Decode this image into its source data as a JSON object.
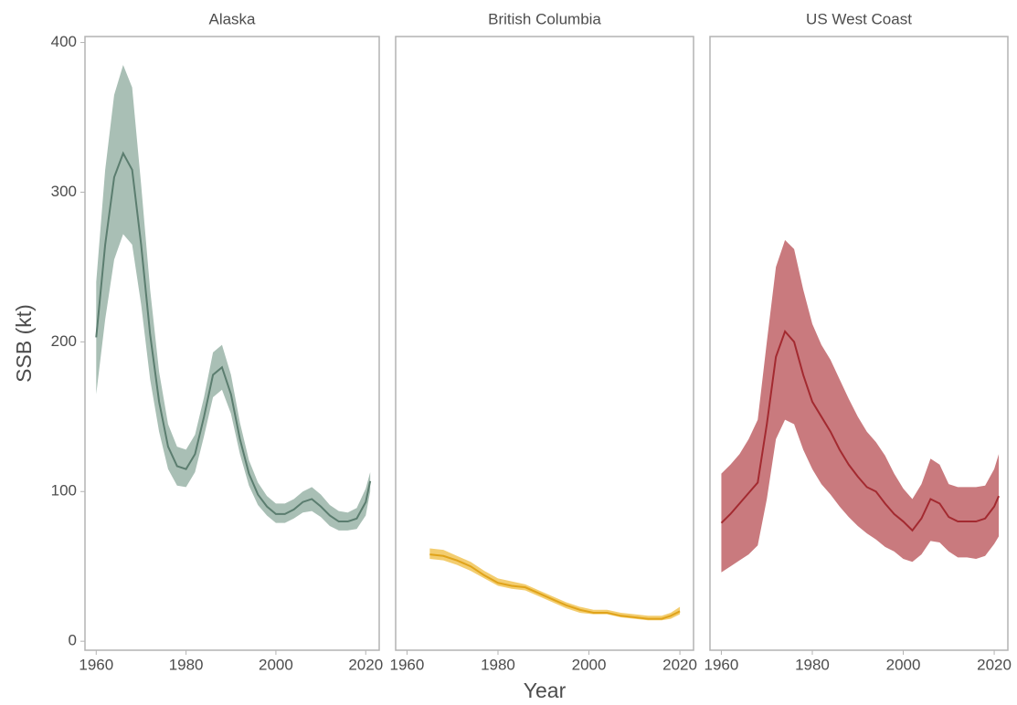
{
  "chart_data": [
    {
      "type": "line",
      "title": "Alaska",
      "ylabel": "SSB (kt)",
      "color": "#5b7d6f",
      "band_color": "#a9bfb5",
      "x": [
        1960,
        1962,
        1964,
        1966,
        1968,
        1970,
        1972,
        1974,
        1976,
        1978,
        1980,
        1982,
        1984,
        1986,
        1988,
        1990,
        1992,
        1994,
        1996,
        1998,
        2000,
        2002,
        2004,
        2006,
        2008,
        2010,
        2012,
        2014,
        2016,
        2018,
        2020,
        2021
      ],
      "values": [
        203,
        265,
        310,
        326,
        315,
        265,
        205,
        160,
        130,
        117,
        115,
        125,
        150,
        178,
        183,
        165,
        135,
        112,
        98,
        90,
        85,
        85,
        88,
        93,
        95,
        90,
        84,
        80,
        80,
        82,
        93,
        107
      ],
      "lower": [
        165,
        215,
        255,
        272,
        265,
        225,
        175,
        140,
        115,
        104,
        103,
        113,
        137,
        163,
        168,
        152,
        125,
        104,
        91,
        84,
        79,
        79,
        82,
        86,
        87,
        83,
        77,
        74,
        74,
        75,
        84,
        100
      ],
      "upper": [
        240,
        315,
        365,
        385,
        370,
        305,
        235,
        180,
        145,
        130,
        128,
        138,
        163,
        193,
        198,
        178,
        146,
        121,
        106,
        97,
        92,
        92,
        95,
        100,
        103,
        98,
        91,
        87,
        86,
        89,
        102,
        113
      ],
      "xlim": [
        1957.5,
        2023
      ],
      "ylim": [
        -6,
        404
      ],
      "xticks": [
        1960,
        1980,
        2000,
        2020
      ],
      "yticks": [
        0,
        100,
        200,
        300,
        400
      ]
    },
    {
      "type": "line",
      "title": "British Columbia",
      "xlabel": "Year",
      "color": "#e0a31a",
      "band_color": "#f3cd6f",
      "x": [
        1965,
        1968,
        1971,
        1974,
        1977,
        1980,
        1983,
        1986,
        1989,
        1992,
        1995,
        1998,
        2001,
        2004,
        2007,
        2010,
        2013,
        2016,
        2018,
        2020
      ],
      "values": [
        58,
        57,
        54,
        50,
        44,
        39,
        37,
        36,
        32,
        28,
        24,
        21,
        19,
        19,
        17,
        16,
        15,
        15,
        17,
        20
      ],
      "lower": [
        55,
        54,
        51,
        47,
        42,
        37,
        35,
        34,
        30,
        26,
        22,
        19,
        18,
        18,
        16,
        15,
        14,
        14,
        15,
        18
      ],
      "upper": [
        62,
        61,
        57,
        53,
        47,
        42,
        40,
        38,
        34,
        30,
        26,
        23,
        21,
        21,
        19,
        18,
        17,
        17,
        19,
        23
      ],
      "xlim": [
        1957.5,
        2023
      ],
      "ylim": [
        -6,
        404
      ],
      "xticks": [
        1960,
        1980,
        2000,
        2020
      ]
    },
    {
      "type": "line",
      "title": "US West Coast",
      "color": "#a32a30",
      "band_color": "#c97a7e",
      "x": [
        1960,
        1962,
        1964,
        1966,
        1968,
        1970,
        1972,
        1974,
        1976,
        1978,
        1980,
        1982,
        1984,
        1986,
        1988,
        1990,
        1992,
        1994,
        1996,
        1998,
        2000,
        2002,
        2004,
        2006,
        2008,
        2010,
        2012,
        2014,
        2016,
        2018,
        2020,
        2021
      ],
      "values": [
        79,
        85,
        92,
        99,
        106,
        145,
        190,
        207,
        200,
        178,
        160,
        150,
        140,
        128,
        118,
        110,
        103,
        100,
        92,
        85,
        80,
        74,
        82,
        95,
        92,
        83,
        80,
        80,
        80,
        82,
        90,
        97
      ],
      "lower": [
        46,
        50,
        54,
        58,
        64,
        95,
        135,
        148,
        145,
        128,
        115,
        105,
        98,
        90,
        83,
        77,
        72,
        68,
        63,
        60,
        55,
        53,
        58,
        67,
        66,
        60,
        56,
        56,
        55,
        57,
        65,
        70
      ],
      "upper": [
        112,
        118,
        125,
        135,
        148,
        200,
        250,
        268,
        262,
        235,
        212,
        198,
        188,
        175,
        162,
        150,
        140,
        133,
        124,
        112,
        102,
        95,
        105,
        122,
        118,
        105,
        103,
        103,
        103,
        104,
        115,
        125
      ],
      "xlim": [
        1957.5,
        2023
      ],
      "ylim": [
        -6,
        404
      ],
      "xticks": [
        1960,
        1980,
        2000,
        2020
      ]
    }
  ]
}
